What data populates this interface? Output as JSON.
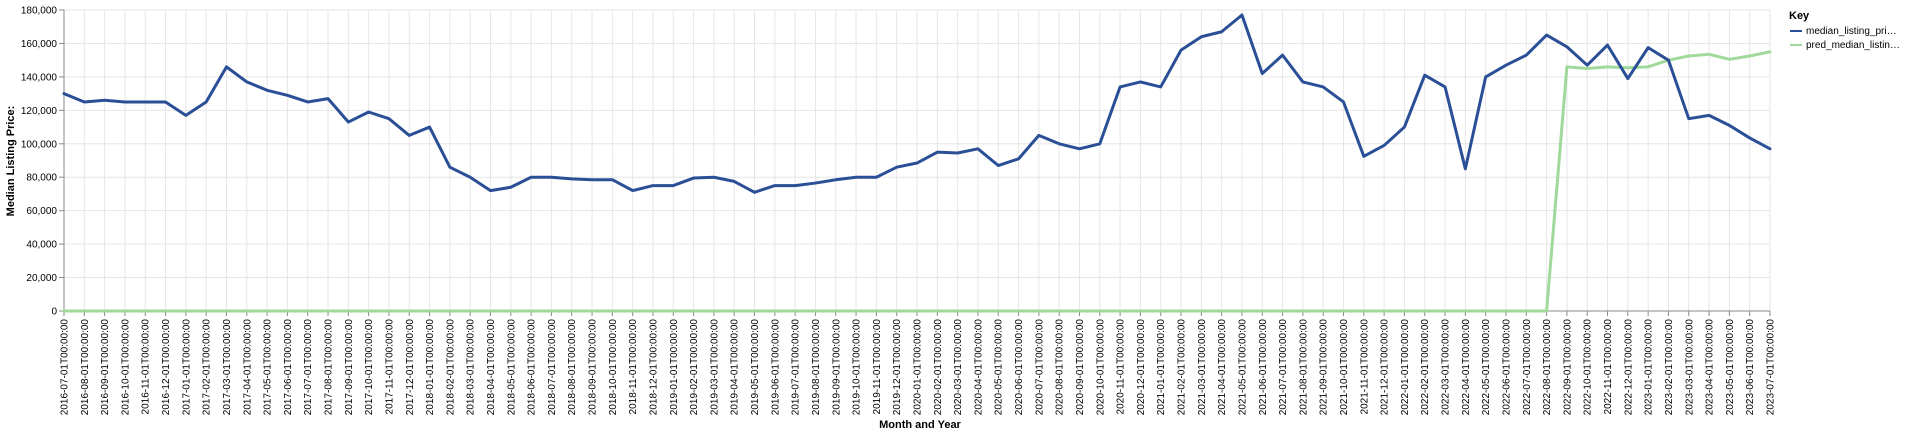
{
  "chart_data": {
    "type": "line",
    "xlabel": "Month and Year",
    "ylabel": "Median Listing Price:",
    "ylim": [
      0,
      180000
    ],
    "yticks": [
      "0",
      "20,000",
      "40,000",
      "60,000",
      "80,000",
      "100,000",
      "120,000",
      "140,000",
      "160,000",
      "180,000"
    ],
    "grid": true,
    "legend": {
      "title": "Key",
      "placement": "right",
      "entries": [
        "median_listing_pri…",
        "pred_median_listin…"
      ]
    },
    "x": [
      "2016-07-01T00:00:00",
      "2016-08-01T00:00:00",
      "2016-09-01T00:00:00",
      "2016-10-01T00:00:00",
      "2016-11-01T00:00:00",
      "2016-12-01T00:00:00",
      "2017-01-01T00:00:00",
      "2017-02-01T00:00:00",
      "2017-03-01T00:00:00",
      "2017-04-01T00:00:00",
      "2017-05-01T00:00:00",
      "2017-06-01T00:00:00",
      "2017-07-01T00:00:00",
      "2017-08-01T00:00:00",
      "2017-09-01T00:00:00",
      "2017-10-01T00:00:00",
      "2017-11-01T00:00:00",
      "2017-12-01T00:00:00",
      "2018-01-01T00:00:00",
      "2018-02-01T00:00:00",
      "2018-03-01T00:00:00",
      "2018-04-01T00:00:00",
      "2018-05-01T00:00:00",
      "2018-06-01T00:00:00",
      "2018-07-01T00:00:00",
      "2018-08-01T00:00:00",
      "2018-09-01T00:00:00",
      "2018-10-01T00:00:00",
      "2018-11-01T00:00:00",
      "2018-12-01T00:00:00",
      "2019-01-01T00:00:00",
      "2019-02-01T00:00:00",
      "2019-03-01T00:00:00",
      "2019-04-01T00:00:00",
      "2019-05-01T00:00:00",
      "2019-06-01T00:00:00",
      "2019-07-01T00:00:00",
      "2019-08-01T00:00:00",
      "2019-09-01T00:00:00",
      "2019-10-01T00:00:00",
      "2019-11-01T00:00:00",
      "2019-12-01T00:00:00",
      "2020-01-01T00:00:00",
      "2020-02-01T00:00:00",
      "2020-03-01T00:00:00",
      "2020-04-01T00:00:00",
      "2020-05-01T00:00:00",
      "2020-06-01T00:00:00",
      "2020-07-01T00:00:00",
      "2020-08-01T00:00:00",
      "2020-09-01T00:00:00",
      "2020-10-01T00:00:00",
      "2020-11-01T00:00:00",
      "2020-12-01T00:00:00",
      "2021-01-01T00:00:00",
      "2021-02-01T00:00:00",
      "2021-03-01T00:00:00",
      "2021-04-01T00:00:00",
      "2021-05-01T00:00:00",
      "2021-06-01T00:00:00",
      "2021-07-01T00:00:00",
      "2021-08-01T00:00:00",
      "2021-09-01T00:00:00",
      "2021-10-01T00:00:00",
      "2021-11-01T00:00:00",
      "2021-12-01T00:00:00",
      "2022-01-01T00:00:00",
      "2022-02-01T00:00:00",
      "2022-03-01T00:00:00",
      "2022-04-01T00:00:00",
      "2022-05-01T00:00:00",
      "2022-06-01T00:00:00",
      "2022-07-01T00:00:00",
      "2022-08-01T00:00:00",
      "2022-09-01T00:00:00",
      "2022-10-01T00:00:00",
      "2022-11-01T00:00:00",
      "2022-12-01T00:00:00",
      "2023-01-01T00:00:00",
      "2023-02-01T00:00:00",
      "2023-03-01T00:00:00",
      "2023-04-01T00:00:00",
      "2023-05-01T00:00:00",
      "2023-06-01T00:00:00",
      "2023-07-01T00:00:00"
    ],
    "series": [
      {
        "name": "median_listing_pri…",
        "color": "#2a4f96",
        "values": [
          130000,
          125000,
          126000,
          125000,
          125000,
          125000,
          117000,
          125000,
          146000,
          137000,
          132000,
          129000,
          125000,
          127000,
          113000,
          119000,
          115000,
          105000,
          110000,
          86000,
          80000,
          72000,
          74000,
          80000,
          80000,
          79000,
          78500,
          78500,
          72000,
          75000,
          75000,
          79500,
          80000,
          77500,
          71000,
          75000,
          75000,
          76500,
          78500,
          80000,
          80000,
          86000,
          88500,
          95000,
          94500,
          97000,
          87000,
          91000,
          105000,
          100000,
          97000,
          100000,
          134000,
          137000,
          134000,
          156000,
          164000,
          167000,
          177000,
          142000,
          153000,
          137000,
          134000,
          125000,
          92500,
          99000,
          110000,
          141000,
          134000,
          85000,
          140000,
          147000,
          153000,
          165000,
          158000,
          147000,
          159000,
          139000,
          157500,
          150000,
          115000,
          117000,
          111000,
          103500,
          97000
        ]
      },
      {
        "name": "pred_median_listin…",
        "color": "#a0d99a",
        "values": [
          0,
          0,
          0,
          0,
          0,
          0,
          0,
          0,
          0,
          0,
          0,
          0,
          0,
          0,
          0,
          0,
          0,
          0,
          0,
          0,
          0,
          0,
          0,
          0,
          0,
          0,
          0,
          0,
          0,
          0,
          0,
          0,
          0,
          0,
          0,
          0,
          0,
          0,
          0,
          0,
          0,
          0,
          0,
          0,
          0,
          0,
          0,
          0,
          0,
          0,
          0,
          0,
          0,
          0,
          0,
          0,
          0,
          0,
          0,
          0,
          0,
          0,
          0,
          0,
          0,
          0,
          0,
          0,
          0,
          0,
          0,
          0,
          0,
          0,
          146000,
          145000,
          146000,
          145500,
          146000,
          150000,
          152500,
          153500,
          150500,
          152500,
          155000
        ]
      }
    ]
  }
}
